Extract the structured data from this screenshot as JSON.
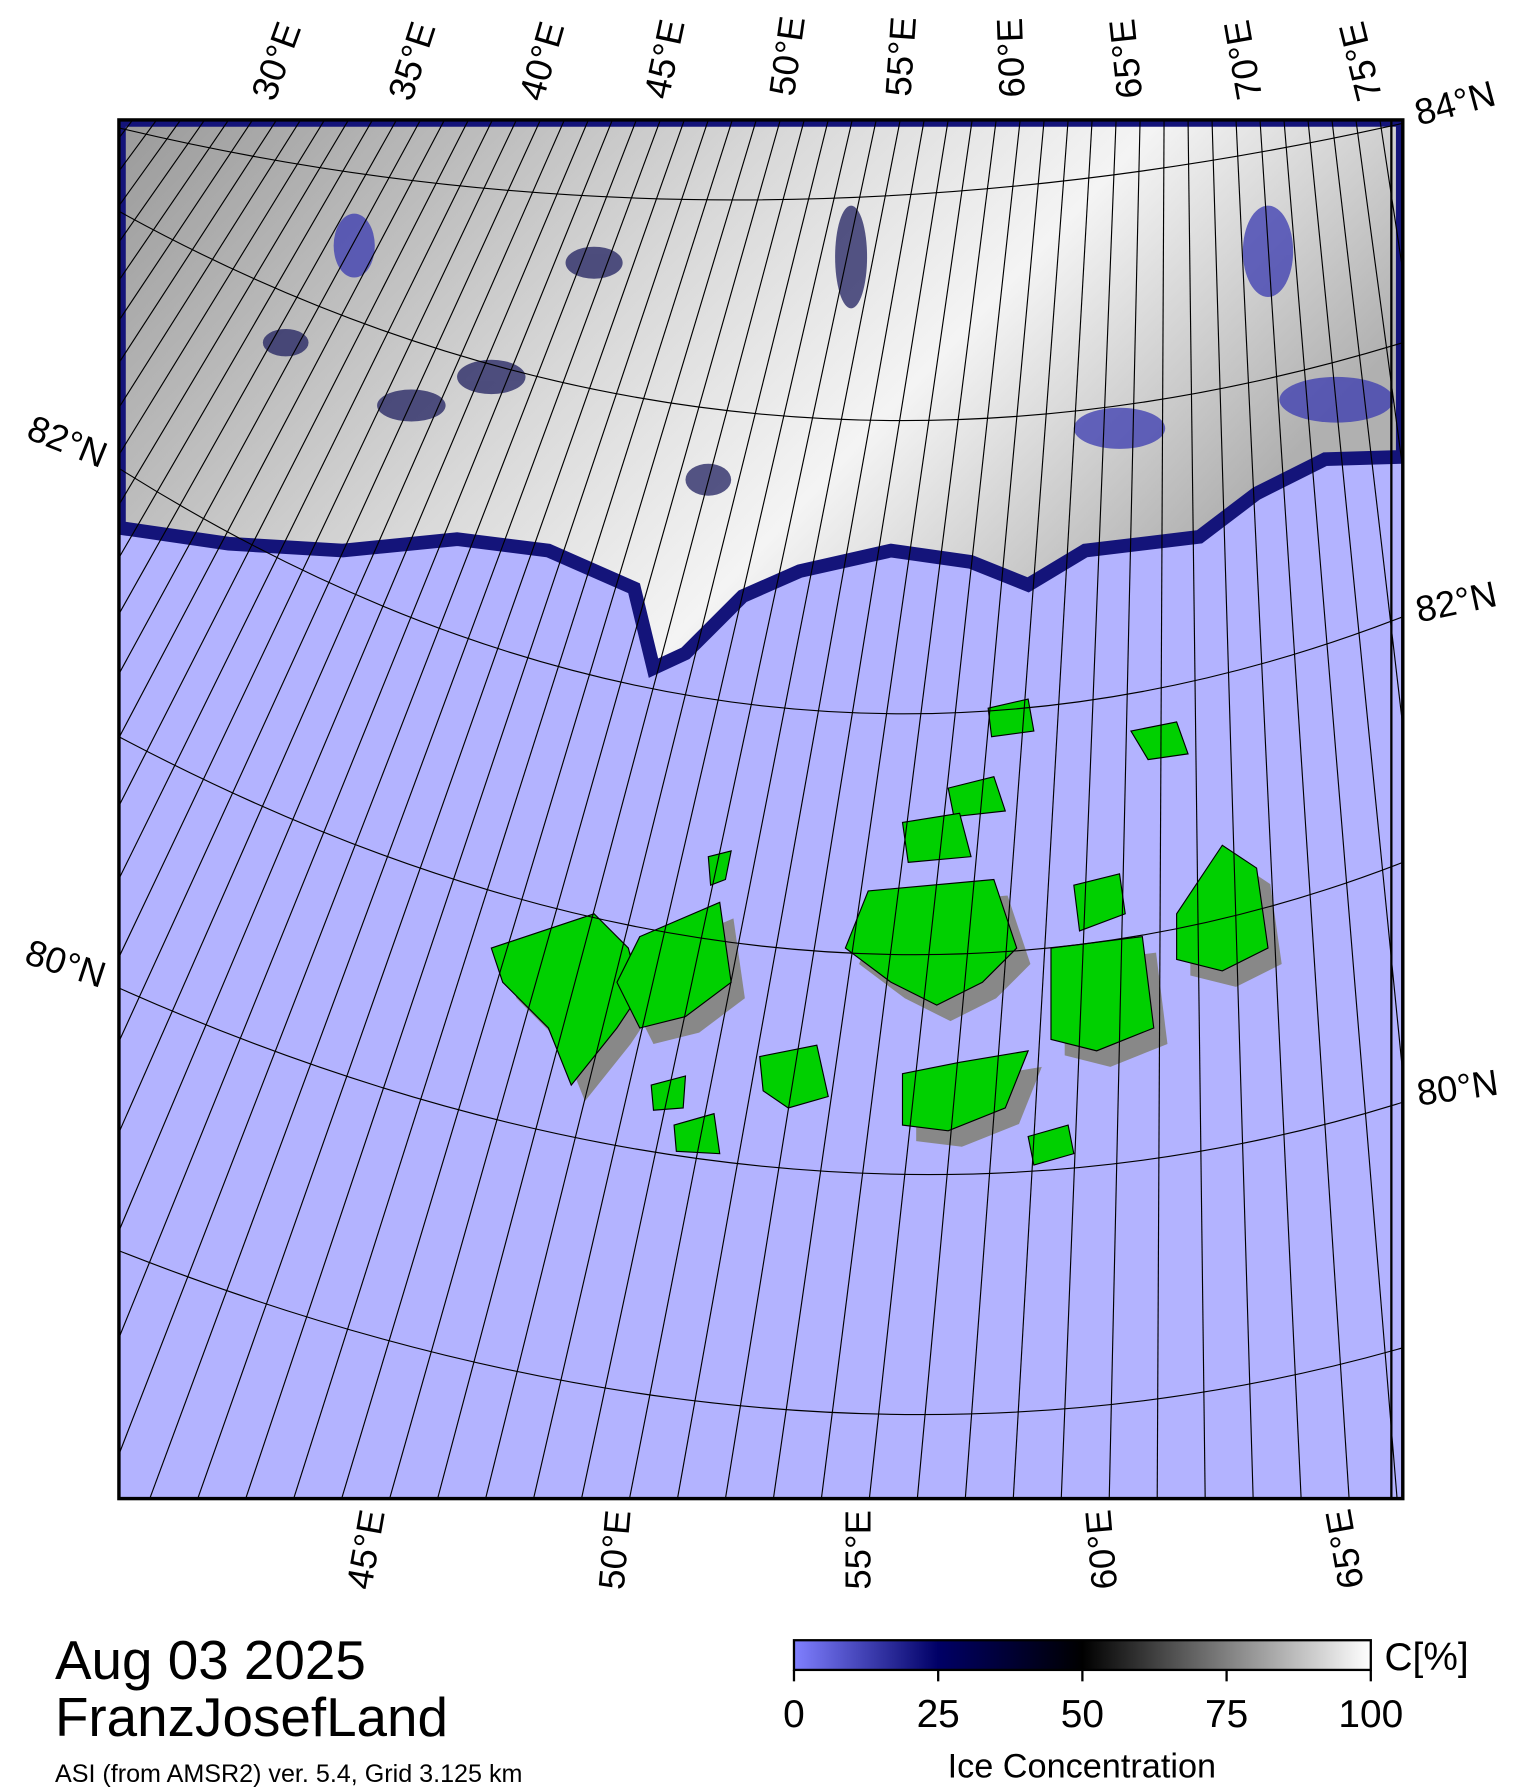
{
  "map": {
    "top_labels": [
      "30°E",
      "35°E",
      "40°E",
      "45°E",
      "50°E",
      "55°E",
      "60°E",
      "65°E",
      "70°E",
      "75°E"
    ],
    "right_labels": [
      "84°N",
      "82°N",
      "80°N"
    ],
    "left_labels": [
      "82°N",
      "80°N"
    ],
    "bottom_labels": [
      "45°E",
      "50°E",
      "55°E",
      "60°E",
      "65°E"
    ]
  },
  "date": "Aug 03 2025",
  "region": "FranzJosefLand",
  "source": "ASI (from AMSR2) ver. 5.4,  Grid 3.125 km",
  "colorbar": {
    "label": "Ice Concentration",
    "unit": "C[%]",
    "lim": [
      0,
      100
    ],
    "ticks": [
      0,
      25,
      50,
      75,
      100
    ],
    "colors": [
      "#8080ff",
      "#000066",
      "#000000",
      "#808080",
      "#ffffff"
    ]
  }
}
